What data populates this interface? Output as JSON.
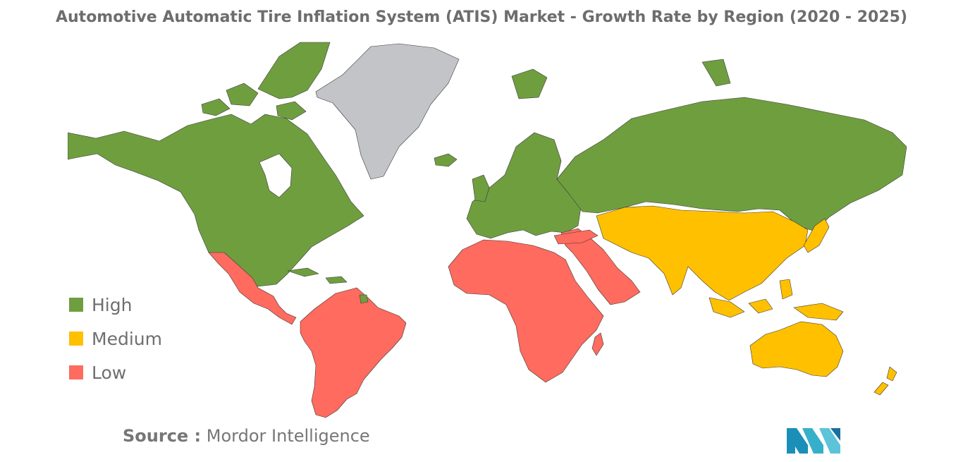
{
  "title": "Automotive Automatic Tire Inflation System (ATIS) Market - Growth Rate by Region (2020 - 2025)",
  "legend": [
    {
      "label": "High",
      "color": "#6f9e3f"
    },
    {
      "label": "Medium",
      "color": "#ffc000"
    },
    {
      "label": "Low",
      "color": "#ff6b5e"
    }
  ],
  "no_data_color": "#c2c4c8",
  "regions": {
    "north_america": "High",
    "europe": "High",
    "russia": "High",
    "central_south_america": "Low",
    "africa": "Low",
    "middle_east": "Low",
    "asia_pacific": "Medium",
    "australia_new_zealand": "Medium"
  },
  "source": {
    "label": "Source :",
    "text": " Mordor Intelligence"
  },
  "logo_icon": "mordor-intelligence-logo"
}
